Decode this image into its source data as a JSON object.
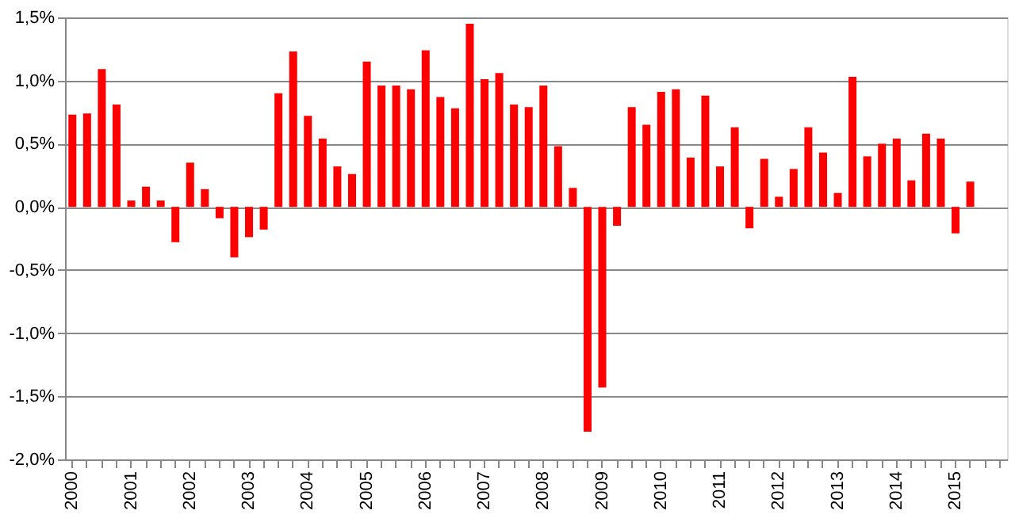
{
  "chart_data": {
    "type": "bar",
    "color": "#ff0000",
    "categories": [
      "2000",
      null,
      null,
      null,
      "2001",
      null,
      null,
      null,
      "2002",
      null,
      null,
      null,
      "2003",
      null,
      null,
      null,
      "2004",
      null,
      null,
      null,
      "2005",
      null,
      null,
      null,
      "2006",
      null,
      null,
      null,
      "2007",
      null,
      null,
      null,
      "2008",
      null,
      null,
      null,
      "2009",
      null,
      null,
      null,
      "2010",
      null,
      null,
      null,
      "2011",
      null,
      null,
      null,
      "2012",
      null,
      null,
      null,
      "2013",
      null,
      null,
      null,
      "2014",
      null,
      null,
      null,
      "2015",
      null,
      null,
      null
    ],
    "values": [
      0.73,
      0.74,
      1.09,
      0.81,
      0.05,
      0.16,
      0.05,
      -0.28,
      0.35,
      0.14,
      -0.09,
      -0.4,
      -0.24,
      -0.18,
      0.9,
      1.23,
      0.72,
      0.54,
      0.32,
      0.26,
      1.15,
      0.96,
      0.96,
      0.93,
      1.24,
      0.87,
      0.78,
      1.45,
      1.01,
      1.06,
      0.81,
      0.79,
      0.96,
      0.48,
      0.15,
      -1.78,
      -1.43,
      -0.15,
      0.79,
      0.65,
      0.91,
      0.93,
      0.39,
      0.88,
      0.32,
      0.63,
      -0.17,
      0.38,
      0.08,
      0.3,
      0.63,
      0.43,
      0.11,
      1.03,
      0.4,
      0.5,
      0.54,
      0.21,
      0.58,
      0.54,
      -0.21,
      0.2,
      null,
      null
    ],
    "ylim": [
      -2.0,
      1.5
    ],
    "yticks": [
      {
        "value": -2.0,
        "label": "-2,0%"
      },
      {
        "value": -1.5,
        "label": "-1,5%"
      },
      {
        "value": -1.0,
        "label": "-1,0%"
      },
      {
        "value": -0.5,
        "label": "-0,5%"
      },
      {
        "value": 0.0,
        "label": "0,0%"
      },
      {
        "value": 0.5,
        "label": "0,5%"
      },
      {
        "value": 1.0,
        "label": "1,0%"
      },
      {
        "value": 1.5,
        "label": "1,5%"
      }
    ],
    "grid": "y"
  }
}
